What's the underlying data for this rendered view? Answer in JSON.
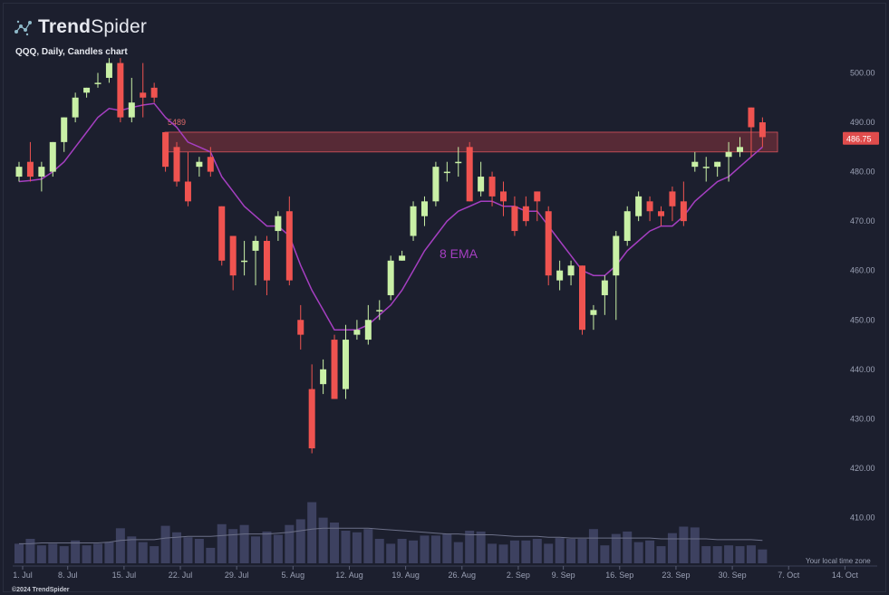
{
  "brand": {
    "bold": "Trend",
    "light": "Spider",
    "icon": "trendspider-logo-icon"
  },
  "subtitle": "QQQ, Daily, Candles chart",
  "timezone_note": "Your local time zone",
  "copyright": "©2024 TrendSpider",
  "colors": {
    "background": "#1c1f2e",
    "up": "#c9f0a6",
    "down": "#ef5350",
    "ema": "#a53fc1",
    "zone_fill": "#6b2f3a",
    "zone_border": "#d9545d",
    "volume": "#3d4160",
    "volume_ma": "#6c7088",
    "price_tag": "#e04c4c"
  },
  "chart_data": {
    "type": "candlestick",
    "symbol": "QQQ",
    "interval": "Daily",
    "ylim": [
      415,
      505
    ],
    "y_ticks": [
      500,
      490,
      480,
      470,
      460,
      450,
      440,
      430,
      420,
      410
    ],
    "x_tick_labels": [
      "1. Jul",
      "8. Jul",
      "15. Jul",
      "22. Jul",
      "29. Jul",
      "5. Aug",
      "12. Aug",
      "19. Aug",
      "26. Aug",
      "2. Sep",
      "9. Sep",
      "16. Sep",
      "23. Sep",
      "30. Sep",
      "7. Oct",
      "14. Oct"
    ],
    "last_price_label": "486.75",
    "zone": {
      "low": 484,
      "high": 488,
      "label": "5489"
    },
    "ema_label": "8 EMA",
    "candles": [
      {
        "date": "1 Jul",
        "o": 479,
        "h": 482,
        "l": 478,
        "c": 481
      },
      {
        "date": "2 Jul",
        "o": 482,
        "h": 486,
        "l": 478,
        "c": 479
      },
      {
        "date": "3 Jul",
        "o": 479,
        "h": 482,
        "l": 476,
        "c": 481
      },
      {
        "date": "5 Jul",
        "o": 480,
        "h": 486,
        "l": 479,
        "c": 486
      },
      {
        "date": "8 Jul",
        "o": 486,
        "h": 491,
        "l": 484,
        "c": 491
      },
      {
        "date": "9 Jul",
        "o": 491,
        "h": 496,
        "l": 490,
        "c": 495
      },
      {
        "date": "10 Jul",
        "o": 496,
        "h": 497,
        "l": 495,
        "c": 497
      },
      {
        "date": "11 Jul",
        "o": 498,
        "h": 500,
        "l": 497,
        "c": 498
      },
      {
        "date": "12 Jul",
        "o": 499,
        "h": 503,
        "l": 498,
        "c": 502
      },
      {
        "date": "15 Jul",
        "o": 502,
        "h": 503,
        "l": 490,
        "c": 491
      },
      {
        "date": "16 Jul",
        "o": 491,
        "h": 499,
        "l": 490,
        "c": 494
      },
      {
        "date": "17 Jul",
        "o": 496,
        "h": 502,
        "l": 491,
        "c": 495
      },
      {
        "date": "18 Jul",
        "o": 497,
        "h": 498,
        "l": 494,
        "c": 495
      },
      {
        "date": "19 Jul",
        "o": 488,
        "h": 488,
        "l": 480,
        "c": 481
      },
      {
        "date": "22 Jul",
        "o": 485,
        "h": 486,
        "l": 477,
        "c": 478
      },
      {
        "date": "23 Jul",
        "o": 478,
        "h": 484,
        "l": 473,
        "c": 474
      },
      {
        "date": "24 Jul",
        "o": 481,
        "h": 483,
        "l": 479,
        "c": 482
      },
      {
        "date": "25 Jul",
        "o": 483,
        "h": 485,
        "l": 479,
        "c": 480
      },
      {
        "date": "26 Jul",
        "o": 473,
        "h": 473,
        "l": 461,
        "c": 462
      },
      {
        "date": "29 Jul",
        "o": 467,
        "h": 467,
        "l": 456,
        "c": 459
      },
      {
        "date": "30 Jul",
        "o": 462,
        "h": 466,
        "l": 459,
        "c": 462
      },
      {
        "date": "31 Jul",
        "o": 464,
        "h": 467,
        "l": 457,
        "c": 466
      },
      {
        "date": "1 Aug",
        "o": 466,
        "h": 467,
        "l": 455,
        "c": 458
      },
      {
        "date": "2 Aug",
        "o": 468,
        "h": 472,
        "l": 466,
        "c": 471
      },
      {
        "date": "5 Aug",
        "o": 472,
        "h": 475,
        "l": 457,
        "c": 458
      },
      {
        "date": "6 Aug",
        "o": 450,
        "h": 453,
        "l": 444,
        "c": 447
      },
      {
        "date": "7 Aug",
        "o": 436,
        "h": 441,
        "l": 423,
        "c": 424
      },
      {
        "date": "8 Aug",
        "o": 437,
        "h": 442,
        "l": 435,
        "c": 440
      },
      {
        "date": "9 Aug",
        "o": 446,
        "h": 447,
        "l": 434,
        "c": 434
      },
      {
        "date": "12 Aug",
        "o": 436,
        "h": 449,
        "l": 434,
        "c": 446
      },
      {
        "date": "13 Aug",
        "o": 447,
        "h": 450,
        "l": 446,
        "c": 448
      },
      {
        "date": "14 Aug",
        "o": 446,
        "h": 453,
        "l": 445,
        "c": 450
      },
      {
        "date": "15 Aug",
        "o": 452,
        "h": 454,
        "l": 450,
        "c": 452
      },
      {
        "date": "16 Aug",
        "o": 455,
        "h": 463,
        "l": 454,
        "c": 462
      },
      {
        "date": "19 Aug",
        "o": 462,
        "h": 464,
        "l": 462,
        "c": 463
      },
      {
        "date": "20 Aug",
        "o": 467,
        "h": 474,
        "l": 466,
        "c": 473
      },
      {
        "date": "21 Aug",
        "o": 471,
        "h": 475,
        "l": 469,
        "c": 474
      },
      {
        "date": "22 Aug",
        "o": 474,
        "h": 482,
        "l": 473,
        "c": 481
      },
      {
        "date": "23 Aug",
        "o": 480,
        "h": 482,
        "l": 478,
        "c": 480
      },
      {
        "date": "26 Aug",
        "o": 482,
        "h": 485,
        "l": 479,
        "c": 482
      },
      {
        "date": "27 Aug",
        "o": 485,
        "h": 486,
        "l": 474,
        "c": 474
      },
      {
        "date": "28 Aug",
        "o": 476,
        "h": 482,
        "l": 475,
        "c": 479
      },
      {
        "date": "29 Aug",
        "o": 479,
        "h": 480,
        "l": 473,
        "c": 475
      },
      {
        "date": "30 Aug",
        "o": 476,
        "h": 478,
        "l": 471,
        "c": 474
      },
      {
        "date": "3 Sep",
        "o": 473,
        "h": 475,
        "l": 467,
        "c": 468
      },
      {
        "date": "4 Sep",
        "o": 473,
        "h": 475,
        "l": 469,
        "c": 470
      },
      {
        "date": "5 Sep",
        "o": 476,
        "h": 476,
        "l": 470,
        "c": 474
      },
      {
        "date": "6 Sep",
        "o": 472,
        "h": 473,
        "l": 457,
        "c": 459
      },
      {
        "date": "9 Sep",
        "o": 458,
        "h": 462,
        "l": 456,
        "c": 460
      },
      {
        "date": "10 Sep",
        "o": 459,
        "h": 462,
        "l": 457,
        "c": 461
      },
      {
        "date": "11 Sep",
        "o": 461,
        "h": 461,
        "l": 447,
        "c": 448
      },
      {
        "date": "12 Sep",
        "o": 451,
        "h": 453,
        "l": 448,
        "c": 452
      },
      {
        "date": "13 Sep",
        "o": 455,
        "h": 459,
        "l": 451,
        "c": 458
      },
      {
        "date": "16 Sep",
        "o": 459,
        "h": 468,
        "l": 450,
        "c": 467
      },
      {
        "date": "17 Sep",
        "o": 466,
        "h": 473,
        "l": 465,
        "c": 472
      },
      {
        "date": "18 Sep",
        "o": 471,
        "h": 476,
        "l": 470,
        "c": 475
      },
      {
        "date": "19 Sep",
        "o": 474,
        "h": 475,
        "l": 470,
        "c": 472
      },
      {
        "date": "20 Sep",
        "o": 472,
        "h": 473,
        "l": 469,
        "c": 471
      },
      {
        "date": "23 Sep",
        "o": 476,
        "h": 477,
        "l": 470,
        "c": 473
      },
      {
        "date": "24 Sep",
        "o": 474,
        "h": 478,
        "l": 469,
        "c": 470
      },
      {
        "date": "25 Sep",
        "o": 481,
        "h": 484,
        "l": 480,
        "c": 482
      },
      {
        "date": "26 Sep",
        "o": 481,
        "h": 483,
        "l": 478,
        "c": 481
      },
      {
        "date": "27 Sep",
        "o": 481,
        "h": 482,
        "l": 479,
        "c": 482
      },
      {
        "date": "30 Sep",
        "o": 483,
        "h": 486,
        "l": 478,
        "c": 484
      },
      {
        "date": "1 Oct",
        "o": 484,
        "h": 487,
        "l": 483,
        "c": 485
      },
      {
        "date": "2 Oct",
        "o": 493,
        "h": 493,
        "l": 483,
        "c": 489
      },
      {
        "date": "3 Oct",
        "o": 490,
        "h": 491,
        "l": 485,
        "c": 487
      }
    ],
    "ema8": [
      478,
      478.2,
      478.5,
      480,
      482,
      485,
      488,
      491,
      492.8,
      492.4,
      493,
      493.5,
      493.8,
      491,
      489,
      486,
      485,
      484,
      479,
      476,
      473,
      471,
      469,
      469,
      467,
      461,
      456,
      452,
      448,
      448,
      448,
      449,
      451,
      453,
      456,
      460,
      464,
      467,
      470,
      472,
      473,
      474,
      474,
      473,
      473,
      472,
      472,
      469,
      466,
      463,
      460,
      459,
      459,
      461,
      464,
      466,
      468,
      469,
      469,
      471,
      474,
      476,
      478,
      479,
      481,
      483,
      485
    ],
    "volume": [
      24,
      30,
      22,
      24,
      21,
      28,
      22,
      24,
      26,
      43,
      33,
      26,
      21,
      46,
      38,
      32,
      30,
      19,
      48,
      42,
      47,
      33,
      39,
      35,
      47,
      54,
      75,
      56,
      50,
      40,
      38,
      42,
      30,
      24,
      30,
      28,
      34,
      34,
      36,
      26,
      40,
      39,
      24,
      23,
      28,
      28,
      30,
      24,
      31,
      30,
      30,
      42,
      22,
      36,
      39,
      26,
      28,
      21,
      37,
      45,
      44,
      21,
      21,
      22,
      21,
      22,
      17
    ],
    "volume_ma": [
      24,
      24,
      25,
      25,
      25,
      25,
      25,
      25,
      26,
      28,
      29,
      29,
      29,
      31,
      32,
      33,
      33,
      33,
      34,
      35,
      36,
      36,
      36,
      37,
      38,
      40,
      42,
      43,
      43,
      43,
      43,
      43,
      42,
      41,
      40,
      39,
      38,
      37,
      36,
      36,
      35,
      35,
      35,
      34,
      33,
      33,
      33,
      32,
      32,
      31,
      31,
      31,
      31,
      31,
      31,
      31,
      31,
      30,
      30,
      30,
      30,
      30,
      29,
      29,
      29,
      29,
      28
    ]
  }
}
